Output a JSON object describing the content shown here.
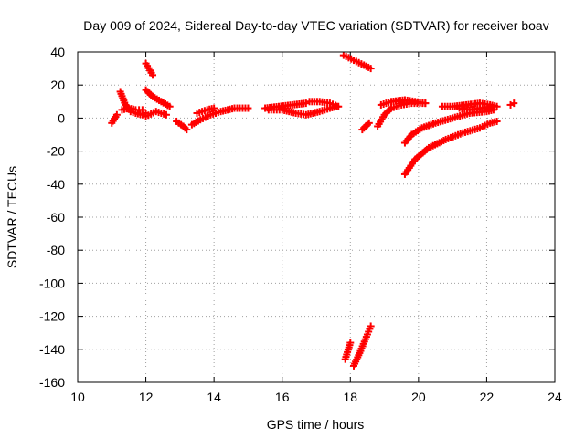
{
  "chart_data": {
    "type": "scatter",
    "title": "Day 009 of 2024, Sidereal Day-to-day VTEC variation (SDTVAR) for receiver boav",
    "xlabel": "GPS time / hours",
    "ylabel": "SDTVAR / TECUs",
    "xlim": [
      10,
      24
    ],
    "ylim": [
      -160,
      40
    ],
    "xticks": [
      10,
      12,
      14,
      16,
      18,
      20,
      22,
      24
    ],
    "yticks": [
      -160,
      -140,
      -120,
      -100,
      -80,
      -60,
      -40,
      -20,
      0,
      20,
      40
    ],
    "grid": true,
    "marker": "plus",
    "color": "#ff0000",
    "segments": [
      {
        "x": [
          11.0,
          11.15
        ],
        "y": [
          -3,
          2
        ]
      },
      {
        "x": [
          11.25,
          11.4,
          11.55,
          11.7,
          11.9,
          12.0
        ],
        "y": [
          16,
          8,
          4,
          3,
          2,
          3
        ]
      },
      {
        "x": [
          11.3,
          11.5,
          11.7,
          11.9
        ],
        "y": [
          5,
          6,
          5,
          5
        ]
      },
      {
        "x": [
          12.0,
          12.2
        ],
        "y": [
          33,
          26
        ]
      },
      {
        "x": [
          12.0,
          12.2,
          12.45,
          12.7
        ],
        "y": [
          17,
          13,
          10,
          7
        ]
      },
      {
        "x": [
          12.0,
          12.3,
          12.6
        ],
        "y": [
          1,
          4,
          2
        ]
      },
      {
        "x": [
          12.9,
          13.1,
          13.2
        ],
        "y": [
          -2,
          -5,
          -7
        ]
      },
      {
        "x": [
          13.35,
          13.6,
          13.9,
          14.2,
          14.6,
          15.0
        ],
        "y": [
          -4,
          -1,
          2,
          4,
          6,
          6
        ]
      },
      {
        "x": [
          13.5,
          13.8,
          14.0
        ],
        "y": [
          3,
          5,
          6
        ]
      },
      {
        "x": [
          15.5,
          15.9,
          16.3,
          16.7
        ],
        "y": [
          6,
          7,
          8,
          9
        ]
      },
      {
        "x": [
          15.6,
          16.0,
          16.4,
          16.7,
          17.1,
          17.4,
          17.6
        ],
        "y": [
          5,
          5,
          3,
          2,
          4,
          6,
          7
        ]
      },
      {
        "x": [
          16.8,
          17.1,
          17.4,
          17.65
        ],
        "y": [
          10,
          10,
          9,
          7
        ]
      },
      {
        "x": [
          17.8,
          18.1,
          18.4,
          18.6
        ],
        "y": [
          38,
          35,
          32,
          30
        ]
      },
      {
        "x": [
          17.85,
          18.0
        ],
        "y": [
          -146,
          -136
        ]
      },
      {
        "x": [
          18.1,
          18.3,
          18.5,
          18.6
        ],
        "y": [
          -150,
          -141,
          -131,
          -126
        ]
      },
      {
        "x": [
          18.35,
          18.55
        ],
        "y": [
          -7,
          -3
        ]
      },
      {
        "x": [
          18.8,
          19.0,
          19.2,
          19.5,
          19.8,
          20.2
        ],
        "y": [
          -5,
          2,
          6,
          8,
          9,
          9
        ]
      },
      {
        "x": [
          18.9,
          19.2,
          19.6,
          19.9,
          20.2
        ],
        "y": [
          8,
          10,
          11,
          10,
          9
        ]
      },
      {
        "x": [
          19.6,
          19.8,
          20.1,
          20.5,
          21.0,
          21.5,
          22.0,
          22.2
        ],
        "y": [
          -15,
          -10,
          -6,
          -3,
          0,
          3,
          4,
          5
        ]
      },
      {
        "x": [
          19.6,
          19.9,
          20.3,
          20.8,
          21.3,
          21.8,
          22.1,
          22.3
        ],
        "y": [
          -34,
          -25,
          -18,
          -13,
          -9,
          -6,
          -3,
          -2
        ]
      },
      {
        "x": [
          20.7,
          21.0,
          21.4,
          21.8,
          22.1,
          22.3
        ],
        "y": [
          7,
          7,
          8,
          9,
          8,
          7
        ]
      },
      {
        "x": [
          21.2,
          21.5,
          21.8,
          22.1
        ],
        "y": [
          6,
          5,
          6,
          7
        ]
      },
      {
        "x": [
          22.7,
          22.8
        ],
        "y": [
          8,
          9
        ]
      }
    ]
  }
}
